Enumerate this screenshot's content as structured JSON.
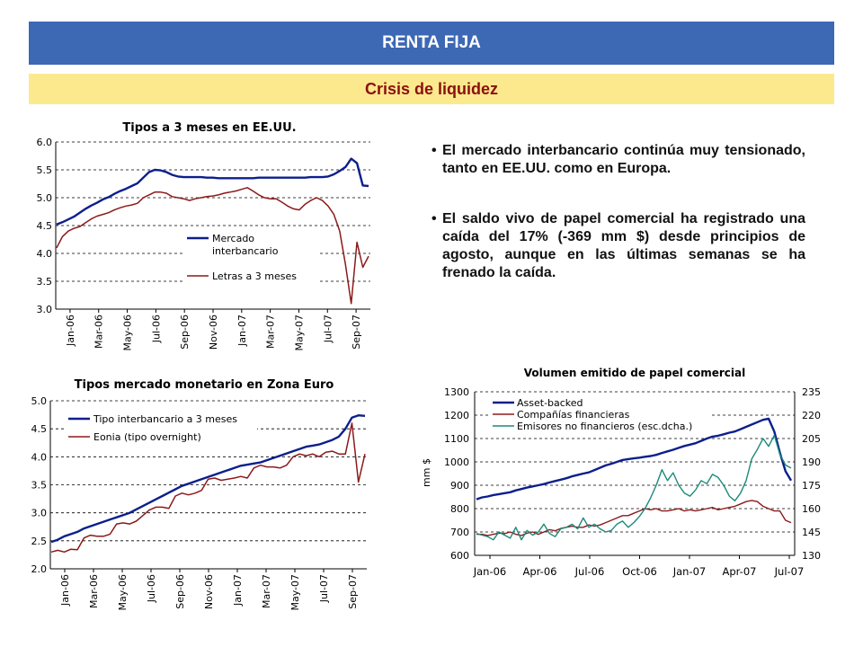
{
  "header": {
    "title": "RENTA FIJA",
    "subtitle": "Crisis de liquidez"
  },
  "bullets": [
    "El mercado interbancario continúa muy tensionado, tanto en EE.UU. como en Europa.",
    "El saldo vivo de papel comercial ha registrado una caída del 17% (-369 mm $) desde principios de agosto, aunque en las últimas semanas se ha frenado la caída."
  ],
  "colors": {
    "header_bg": "#3d68b4",
    "subheader_bg": "#fce98d",
    "subheader_text": "#8b0f0f",
    "blue": "#0b1f8c",
    "red": "#8b1a1a",
    "teal": "#1b8a7a"
  },
  "chart_data": [
    {
      "type": "line",
      "title": "Tipos a 3 meses en EE.UU.",
      "ylim": [
        3.0,
        6.0
      ],
      "yticks": [
        "6.0",
        "5.5",
        "5.0",
        "4.5",
        "4.0",
        "3.5",
        "3.0"
      ],
      "xtick_labels": [
        "Jan-06",
        "Mar-06",
        "May-06",
        "Jul-06",
        "Sep-06",
        "Nov-06",
        "Jan-07",
        "Mar-07",
        "May-07",
        "Jul-07",
        "Sep-07"
      ],
      "legend_position": "center-right",
      "series": [
        {
          "name": "Mercado interbancario",
          "color": "#0b1f8c",
          "values": [
            4.52,
            4.56,
            4.61,
            4.66,
            4.73,
            4.8,
            4.86,
            4.91,
            4.97,
            5.01,
            5.07,
            5.12,
            5.16,
            5.21,
            5.26,
            5.36,
            5.46,
            5.5,
            5.49,
            5.46,
            5.41,
            5.38,
            5.37,
            5.37,
            5.37,
            5.37,
            5.36,
            5.36,
            5.35,
            5.35,
            5.35,
            5.35,
            5.35,
            5.35,
            5.35,
            5.36,
            5.36,
            5.36,
            5.36,
            5.36,
            5.36,
            5.36,
            5.36,
            5.36,
            5.37,
            5.37,
            5.37,
            5.38,
            5.42,
            5.48,
            5.55,
            5.7,
            5.62,
            5.22,
            5.21
          ]
        },
        {
          "name": "Letras a 3 meses",
          "color": "#8b1a1a",
          "values": [
            4.1,
            4.3,
            4.4,
            4.45,
            4.48,
            4.55,
            4.62,
            4.67,
            4.7,
            4.73,
            4.78,
            4.82,
            4.85,
            4.87,
            4.9,
            5.0,
            5.05,
            5.1,
            5.1,
            5.08,
            5.02,
            5.0,
            4.98,
            4.95,
            4.98,
            5.0,
            5.02,
            5.03,
            5.05,
            5.08,
            5.1,
            5.12,
            5.15,
            5.18,
            5.12,
            5.05,
            5.0,
            4.98,
            4.98,
            4.92,
            4.85,
            4.8,
            4.78,
            4.88,
            4.95,
            5.0,
            4.95,
            4.85,
            4.7,
            4.4,
            3.8,
            3.1,
            4.2,
            3.75,
            3.95
          ]
        }
      ]
    },
    {
      "type": "line",
      "title": "Tipos mercado monetario en Zona Euro",
      "ylim": [
        2.0,
        5.0
      ],
      "yticks": [
        "5.0",
        "4.5",
        "4.0",
        "3.5",
        "3.0",
        "2.5",
        "2.0"
      ],
      "xtick_labels": [
        "Jan-06",
        "Mar-06",
        "May-06",
        "Jul-06",
        "Sep-06",
        "Nov-06",
        "Jan-07",
        "Mar-07",
        "May-07",
        "Jul-07",
        "Sep-07"
      ],
      "legend_position": "top-left",
      "series": [
        {
          "name": "Tipo interbancario a 3 meses",
          "color": "#0b1f8c",
          "values": [
            2.48,
            2.52,
            2.58,
            2.62,
            2.66,
            2.72,
            2.76,
            2.8,
            2.84,
            2.88,
            2.92,
            2.96,
            3.0,
            3.06,
            3.12,
            3.18,
            3.24,
            3.3,
            3.36,
            3.42,
            3.48,
            3.52,
            3.56,
            3.6,
            3.64,
            3.68,
            3.72,
            3.76,
            3.8,
            3.84,
            3.86,
            3.88,
            3.9,
            3.94,
            3.98,
            4.02,
            4.06,
            4.1,
            4.14,
            4.18,
            4.2,
            4.22,
            4.26,
            4.3,
            4.36,
            4.5,
            4.7,
            4.74,
            4.73
          ]
        },
        {
          "name": "Eonia (tipo overnight)",
          "color": "#8b1a1a",
          "values": [
            2.3,
            2.33,
            2.3,
            2.35,
            2.34,
            2.55,
            2.6,
            2.58,
            2.58,
            2.62,
            2.8,
            2.82,
            2.8,
            2.85,
            2.95,
            3.05,
            3.1,
            3.1,
            3.08,
            3.3,
            3.35,
            3.32,
            3.35,
            3.4,
            3.6,
            3.62,
            3.58,
            3.6,
            3.62,
            3.65,
            3.62,
            3.8,
            3.85,
            3.82,
            3.82,
            3.8,
            3.85,
            4.0,
            4.05,
            4.02,
            4.05,
            4.0,
            4.08,
            4.1,
            4.05,
            4.05,
            4.6,
            3.55,
            4.05
          ]
        }
      ]
    },
    {
      "type": "line",
      "title": "Volumen emitido de papel comercial",
      "ylabel": "mm $",
      "ylim": [
        600,
        1300
      ],
      "y2lim": [
        130,
        235
      ],
      "yticks": [
        "1300",
        "1200",
        "1100",
        "1000",
        "900",
        "800",
        "700",
        "600"
      ],
      "y2ticks": [
        "235",
        "220",
        "205",
        "190",
        "175",
        "160",
        "145",
        "130"
      ],
      "xtick_labels": [
        "Jan-06",
        "Apr-06",
        "Jul-06",
        "Oct-06",
        "Jan-07",
        "Apr-07",
        "Jul-07"
      ],
      "legend_position": "top-left",
      "series": [
        {
          "name": "Asset-backed",
          "axis": "left",
          "color": "#0b1f8c",
          "values": [
            840,
            848,
            852,
            858,
            862,
            866,
            870,
            878,
            884,
            890,
            895,
            900,
            905,
            912,
            918,
            924,
            930,
            938,
            944,
            950,
            955,
            965,
            975,
            985,
            992,
            1000,
            1008,
            1012,
            1015,
            1018,
            1022,
            1025,
            1030,
            1038,
            1045,
            1052,
            1060,
            1068,
            1074,
            1080,
            1090,
            1100,
            1108,
            1112,
            1118,
            1125,
            1130,
            1140,
            1150,
            1160,
            1170,
            1180,
            1185,
            1130,
            1040,
            960,
            920
          ]
        },
        {
          "name": "Compañías financieras",
          "axis": "left",
          "color": "#8b1a1a",
          "values": [
            690,
            690,
            685,
            690,
            695,
            693,
            700,
            690,
            685,
            695,
            700,
            690,
            700,
            710,
            705,
            715,
            720,
            725,
            720,
            720,
            730,
            725,
            730,
            740,
            750,
            760,
            770,
            770,
            780,
            790,
            800,
            795,
            800,
            790,
            790,
            795,
            800,
            790,
            795,
            790,
            795,
            800,
            805,
            795,
            800,
            805,
            810,
            820,
            830,
            835,
            830,
            810,
            800,
            790,
            790,
            750,
            740
          ]
        },
        {
          "name": "Emisores no financieros (esc.dcha.)",
          "axis": "right",
          "color": "#1b8a7a",
          "values": [
            144,
            143,
            142,
            140,
            145,
            143,
            141,
            148,
            140,
            146,
            143,
            145,
            150,
            144,
            142,
            147,
            148,
            150,
            147,
            154,
            148,
            150,
            147,
            145,
            146,
            150,
            152,
            148,
            151,
            155,
            160,
            167,
            175,
            185,
            178,
            183,
            175,
            170,
            168,
            172,
            178,
            176,
            182,
            180,
            175,
            168,
            165,
            170,
            178,
            192,
            198,
            205,
            200,
            207,
            195,
            188,
            186
          ]
        }
      ]
    }
  ]
}
